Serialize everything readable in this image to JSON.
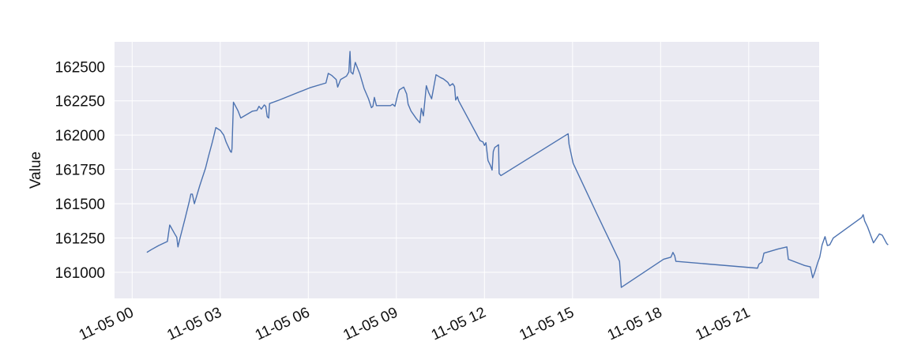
{
  "chart_data": {
    "type": "line",
    "title": "",
    "xlabel": "",
    "ylabel": "Value",
    "x_tick_labels": [
      "11-05 00",
      "11-05 03",
      "11-05 06",
      "11-05 09",
      "11-05 12",
      "11-05 15",
      "11-05 18",
      "11-05 21"
    ],
    "x_ticks_hours": [
      0,
      3,
      6,
      9,
      12,
      15,
      18,
      21
    ],
    "y_ticks": [
      161000,
      161250,
      161500,
      161750,
      162000,
      162250,
      162500
    ],
    "xlim_hours": [
      -0.6,
      23.4
    ],
    "ylim": [
      160810,
      162680
    ],
    "grid": true,
    "legend": "none",
    "colors": {
      "line": "#4c72b0",
      "plot_background": "#eaeaf2",
      "grid": "#ffffff"
    },
    "series": [
      {
        "name": "",
        "points": [
          [
            0.5,
            161145
          ],
          [
            0.65,
            161165
          ],
          [
            0.9,
            161195
          ],
          [
            1.2,
            161225
          ],
          [
            1.28,
            161345
          ],
          [
            1.45,
            161280
          ],
          [
            1.52,
            161255
          ],
          [
            1.56,
            161185
          ],
          [
            1.62,
            161240
          ],
          [
            1.8,
            161390
          ],
          [
            1.95,
            161520
          ],
          [
            2.0,
            161570
          ],
          [
            2.05,
            161570
          ],
          [
            2.12,
            161500
          ],
          [
            2.3,
            161630
          ],
          [
            2.5,
            161760
          ],
          [
            2.6,
            161845
          ],
          [
            2.72,
            161940
          ],
          [
            2.8,
            162010
          ],
          [
            2.85,
            162055
          ],
          [
            3.0,
            162035
          ],
          [
            3.12,
            162000
          ],
          [
            3.2,
            161950
          ],
          [
            3.35,
            161880
          ],
          [
            3.38,
            161875
          ],
          [
            3.4,
            161900
          ],
          [
            3.45,
            162240
          ],
          [
            3.6,
            162180
          ],
          [
            3.7,
            162125
          ],
          [
            4.1,
            162175
          ],
          [
            4.25,
            162180
          ],
          [
            4.32,
            162210
          ],
          [
            4.4,
            162190
          ],
          [
            4.5,
            162220
          ],
          [
            4.55,
            162210
          ],
          [
            4.6,
            162135
          ],
          [
            4.65,
            162125
          ],
          [
            4.68,
            162230
          ],
          [
            5.0,
            162255
          ],
          [
            6.05,
            162345
          ],
          [
            6.6,
            162380
          ],
          [
            6.68,
            162450
          ],
          [
            6.8,
            162435
          ],
          [
            6.95,
            162405
          ],
          [
            7.0,
            162350
          ],
          [
            7.1,
            162405
          ],
          [
            7.3,
            162430
          ],
          [
            7.38,
            162460
          ],
          [
            7.42,
            162610
          ],
          [
            7.45,
            162460
          ],
          [
            7.52,
            162445
          ],
          [
            7.6,
            162530
          ],
          [
            7.75,
            162450
          ],
          [
            7.9,
            162340
          ],
          [
            8.05,
            162265
          ],
          [
            8.15,
            162200
          ],
          [
            8.2,
            162210
          ],
          [
            8.25,
            162275
          ],
          [
            8.32,
            162215
          ],
          [
            8.8,
            162215
          ],
          [
            8.87,
            162225
          ],
          [
            8.95,
            162210
          ],
          [
            9.05,
            162300
          ],
          [
            9.1,
            162330
          ],
          [
            9.25,
            162350
          ],
          [
            9.35,
            162300
          ],
          [
            9.4,
            162225
          ],
          [
            9.5,
            162175
          ],
          [
            9.68,
            162120
          ],
          [
            9.8,
            162090
          ],
          [
            9.85,
            162195
          ],
          [
            9.92,
            162140
          ],
          [
            10.02,
            162360
          ],
          [
            10.1,
            162310
          ],
          [
            10.2,
            162265
          ],
          [
            10.35,
            162440
          ],
          [
            10.5,
            162420
          ],
          [
            10.6,
            162410
          ],
          [
            10.75,
            162385
          ],
          [
            10.82,
            162360
          ],
          [
            10.92,
            162375
          ],
          [
            10.98,
            162355
          ],
          [
            11.02,
            162255
          ],
          [
            11.08,
            162280
          ],
          [
            11.12,
            162250
          ],
          [
            11.85,
            161960
          ],
          [
            11.95,
            161950
          ],
          [
            12.0,
            161925
          ],
          [
            12.05,
            161945
          ],
          [
            12.12,
            161815
          ],
          [
            12.2,
            161780
          ],
          [
            12.26,
            161745
          ],
          [
            12.3,
            161880
          ],
          [
            12.35,
            161910
          ],
          [
            12.42,
            161920
          ],
          [
            12.48,
            161930
          ],
          [
            12.5,
            161720
          ],
          [
            12.56,
            161705
          ],
          [
            14.85,
            162010
          ],
          [
            14.88,
            161935
          ],
          [
            15.02,
            161795
          ],
          [
            15.82,
            161430
          ],
          [
            16.3,
            161215
          ],
          [
            16.6,
            161080
          ],
          [
            16.66,
            160890
          ],
          [
            18.1,
            161095
          ],
          [
            18.35,
            161110
          ],
          [
            18.42,
            161145
          ],
          [
            18.48,
            161120
          ],
          [
            18.52,
            161080
          ],
          [
            21.3,
            161030
          ],
          [
            21.35,
            161060
          ],
          [
            21.45,
            161075
          ],
          [
            21.52,
            161140
          ],
          [
            22.0,
            161170
          ],
          [
            22.3,
            161185
          ],
          [
            22.35,
            161095
          ],
          [
            22.9,
            161050
          ],
          [
            23.1,
            161040
          ],
          [
            23.18,
            160960
          ],
          [
            23.25,
            161000
          ],
          [
            23.35,
            161070
          ],
          [
            23.42,
            161110
          ],
          [
            23.5,
            161200
          ],
          [
            23.6,
            161260
          ],
          [
            23.68,
            161195
          ],
          [
            23.76,
            161200
          ],
          [
            23.88,
            161250
          ],
          [
            24.85,
            161400
          ],
          [
            24.9,
            161420
          ],
          [
            24.95,
            161375
          ],
          [
            25.05,
            161330
          ],
          [
            25.25,
            161215
          ],
          [
            25.36,
            161250
          ],
          [
            25.45,
            161280
          ],
          [
            25.55,
            161270
          ],
          [
            25.7,
            161210
          ],
          [
            25.75,
            161200
          ]
        ]
      }
    ]
  }
}
